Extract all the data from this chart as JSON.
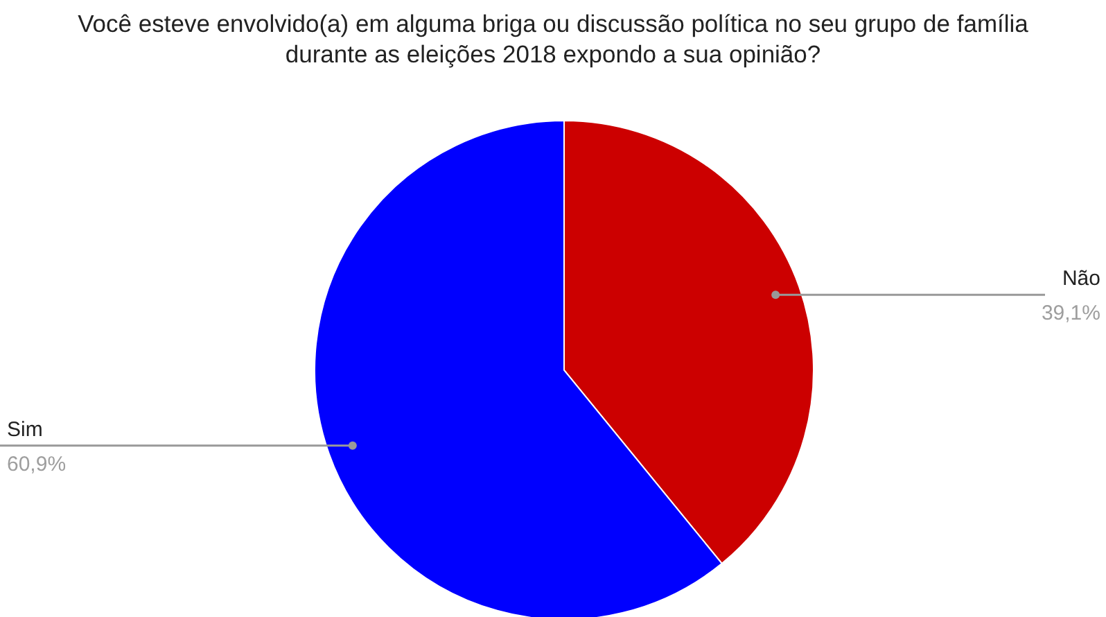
{
  "chart_data": {
    "type": "pie",
    "title": "Você esteve envolvido(a) em alguma briga ou discussão política no seu grupo de família durante as eleições 2018 expondo a sua opinião?",
    "categories": [
      "Não",
      "Sim"
    ],
    "values": [
      39.1,
      60.9
    ],
    "value_labels": [
      "39,1%",
      "60,9%"
    ],
    "colors": [
      "#cc0000",
      "#0000ff"
    ],
    "legend": false
  }
}
